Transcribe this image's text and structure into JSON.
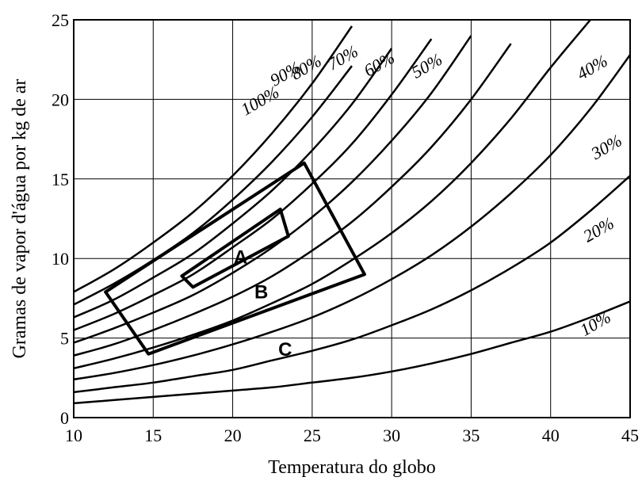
{
  "chart_data": {
    "type": "line",
    "title": "",
    "xlabel": "Temperatura do globo",
    "ylabel": "Gramas de vapor d'água por kg de ar",
    "xlim": [
      10,
      45
    ],
    "ylim": [
      0,
      25
    ],
    "x_ticks": [
      "10",
      "15",
      "20",
      "25",
      "30",
      "35",
      "40",
      "45"
    ],
    "y_ticks": [
      "0",
      "5",
      "10",
      "15",
      "20",
      "25"
    ],
    "grid": true,
    "x": [
      10,
      12.5,
      15,
      17.5,
      20,
      22.5,
      25,
      27.5,
      30,
      32.5,
      35,
      37.5,
      40,
      42.5,
      45
    ],
    "series": [
      {
        "name": "100%",
        "values": [
          7.9,
          9.3,
          11.0,
          12.9,
          15.2,
          17.9,
          21.0,
          24.6,
          null,
          null,
          null,
          null,
          null,
          null,
          null
        ],
        "label_at": [
          21.9,
          19.6
        ]
      },
      {
        "name": "90%",
        "values": [
          7.1,
          8.4,
          9.9,
          11.6,
          13.7,
          16.1,
          18.9,
          22.1,
          null,
          null,
          null,
          null,
          null,
          null,
          null
        ],
        "label_at": [
          23.5,
          21.3
        ]
      },
      {
        "name": "80%",
        "values": [
          6.3,
          7.4,
          8.8,
          10.3,
          12.2,
          14.3,
          16.8,
          19.7,
          23.2,
          null,
          null,
          null,
          null,
          null,
          null
        ],
        "label_at": [
          24.8,
          21.7
        ]
      },
      {
        "name": "70%",
        "values": [
          5.5,
          6.5,
          7.7,
          9.0,
          10.7,
          12.5,
          14.7,
          17.2,
          20.3,
          23.8,
          null,
          null,
          null,
          null,
          null
        ],
        "label_at": [
          27.1,
          22.3
        ]
      },
      {
        "name": "60%",
        "values": [
          4.7,
          5.6,
          6.6,
          7.7,
          9.1,
          10.7,
          12.6,
          14.8,
          17.4,
          20.4,
          24.0,
          null,
          null,
          null,
          null
        ],
        "label_at": [
          29.4,
          21.9
        ]
      },
      {
        "name": "50%",
        "values": [
          3.9,
          4.6,
          5.5,
          6.5,
          7.6,
          8.9,
          10.5,
          12.3,
          14.5,
          17.0,
          20.0,
          23.5,
          null,
          null,
          null
        ],
        "label_at": [
          32.4,
          21.8
        ]
      },
      {
        "name": "40%",
        "values": [
          3.1,
          3.7,
          4.4,
          5.2,
          6.1,
          7.2,
          8.4,
          9.9,
          11.6,
          13.6,
          16.0,
          18.8,
          22.0,
          25.0,
          null
        ],
        "label_at": [
          42.8,
          21.7
        ]
      },
      {
        "name": "30%",
        "values": [
          2.4,
          2.8,
          3.3,
          3.9,
          4.6,
          5.4,
          6.3,
          7.4,
          8.7,
          10.2,
          12.0,
          14.1,
          16.5,
          19.4,
          22.8
        ],
        "label_at": [
          43.7,
          16.7
        ]
      },
      {
        "name": "20%",
        "values": [
          1.6,
          1.9,
          2.2,
          2.6,
          3.0,
          3.6,
          4.2,
          4.9,
          5.8,
          6.8,
          8.0,
          9.4,
          11.0,
          13.0,
          15.2
        ],
        "label_at": [
          43.2,
          11.5
        ]
      },
      {
        "name": "10%",
        "values": [
          0.9,
          1.1,
          1.3,
          1.5,
          1.7,
          1.9,
          2.2,
          2.5,
          2.9,
          3.4,
          4.0,
          4.7,
          5.4,
          6.3,
          7.3
        ],
        "label_at": [
          43.0,
          5.6
        ]
      }
    ],
    "zones": [
      {
        "name": "A",
        "polygon": [
          [
            17.5,
            8.2
          ],
          [
            23.5,
            11.4
          ],
          [
            23.0,
            13.1
          ],
          [
            16.8,
            8.9
          ]
        ],
        "label_at": [
          20.5,
          10.0
        ]
      },
      {
        "name": "B",
        "polygon": [
          [
            12.0,
            7.9
          ],
          [
            24.5,
            16.0
          ],
          [
            28.3,
            9.0
          ],
          [
            14.7,
            4.0
          ]
        ],
        "label_at": [
          21.8,
          7.8
        ]
      },
      {
        "name": "C",
        "polygon": [],
        "label_at": [
          23.3,
          4.2
        ]
      }
    ]
  }
}
